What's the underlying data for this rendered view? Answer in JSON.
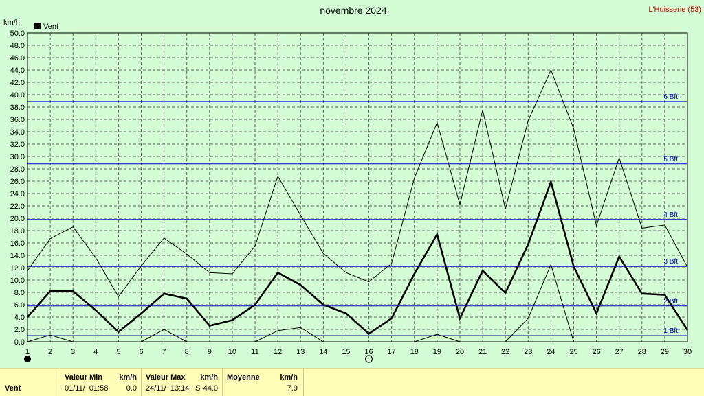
{
  "header": {
    "title": "novembre 2024",
    "station": "L'Huisserie (53)",
    "unit": "km/h",
    "legend_label": "Vent"
  },
  "chart_data": {
    "type": "line",
    "title": "novembre 2024",
    "ylabel": "km/h",
    "xlabel": "",
    "ylim": [
      0,
      50
    ],
    "xlim": [
      1,
      30
    ],
    "grid": true,
    "legend": "top-left",
    "y_ticks": [
      "0.0",
      "2.0",
      "4.0",
      "6.0",
      "8.0",
      "10.0",
      "12.0",
      "14.0",
      "16.0",
      "18.0",
      "20.0",
      "22.0",
      "24.0",
      "26.0",
      "28.0",
      "30.0",
      "32.0",
      "34.0",
      "36.0",
      "38.0",
      "40.0",
      "42.0",
      "44.0",
      "46.0",
      "48.0",
      "50.0"
    ],
    "x": [
      1,
      2,
      3,
      4,
      5,
      6,
      7,
      8,
      9,
      10,
      11,
      12,
      13,
      14,
      15,
      16,
      17,
      18,
      19,
      20,
      21,
      22,
      23,
      24,
      25,
      26,
      27,
      28,
      29,
      30
    ],
    "series": [
      {
        "name": "Vent",
        "role": "mean",
        "color": "#000000",
        "values": [
          4.0,
          8.2,
          8.2,
          5.1,
          1.6,
          4.6,
          7.8,
          7.0,
          2.6,
          3.5,
          6.0,
          11.2,
          9.2,
          6.0,
          4.6,
          1.3,
          3.8,
          11.0,
          17.4,
          3.8,
          11.5,
          7.9,
          15.8,
          25.9,
          12.2,
          4.6,
          13.8,
          7.8,
          7.6,
          1.9
        ]
      },
      {
        "role": "max",
        "color": "#000000",
        "values": [
          11.5,
          16.7,
          18.6,
          13.6,
          7.3,
          12.3,
          16.8,
          14.2,
          11.2,
          11.0,
          15.5,
          26.8,
          20.5,
          14.3,
          11.2,
          9.7,
          12.7,
          26.5,
          35.5,
          22.2,
          37.5,
          21.5,
          35.8,
          44.0,
          34.5,
          18.8,
          29.8,
          18.4,
          18.9,
          12.1
        ]
      },
      {
        "role": "min",
        "color": "#000000",
        "values": [
          0.0,
          1.1,
          0.0,
          0.0,
          0.0,
          0.0,
          2.0,
          0.0,
          0.0,
          0.0,
          0.0,
          1.8,
          2.3,
          0.0,
          0.0,
          0.0,
          0.0,
          0.0,
          1.2,
          0.0,
          0.0,
          0.0,
          3.8,
          12.5,
          0.0,
          0.0,
          0.0,
          0.0,
          0.0,
          0.0
        ]
      }
    ],
    "beaufort": [
      {
        "label": "1 Bft",
        "value": 1.0
      },
      {
        "label": "2 Bft",
        "value": 5.8
      },
      {
        "label": "3 Bft",
        "value": 12.2
      },
      {
        "label": "4 Bft",
        "value": 19.8
      },
      {
        "label": "5 Bft",
        "value": 28.8
      },
      {
        "label": "6 Bft",
        "value": 38.9
      }
    ],
    "moon_phases": [
      {
        "day": 1,
        "phase": "new-moon"
      },
      {
        "day": 16,
        "phase": "full-moon"
      }
    ]
  },
  "footer": {
    "row_label": "Vent",
    "min_header": "Valeur Min",
    "min_unit": "km/h",
    "min_date": "01/11/  01:58",
    "min_value": "0.0",
    "max_header": "Valeur Max",
    "max_unit": "km/h",
    "max_date": "24/11/  13:14",
    "max_dir": "S",
    "max_value": "44.0",
    "avg_header": "Moyenne",
    "avg_unit": "km/h",
    "avg_value": "7.9"
  }
}
